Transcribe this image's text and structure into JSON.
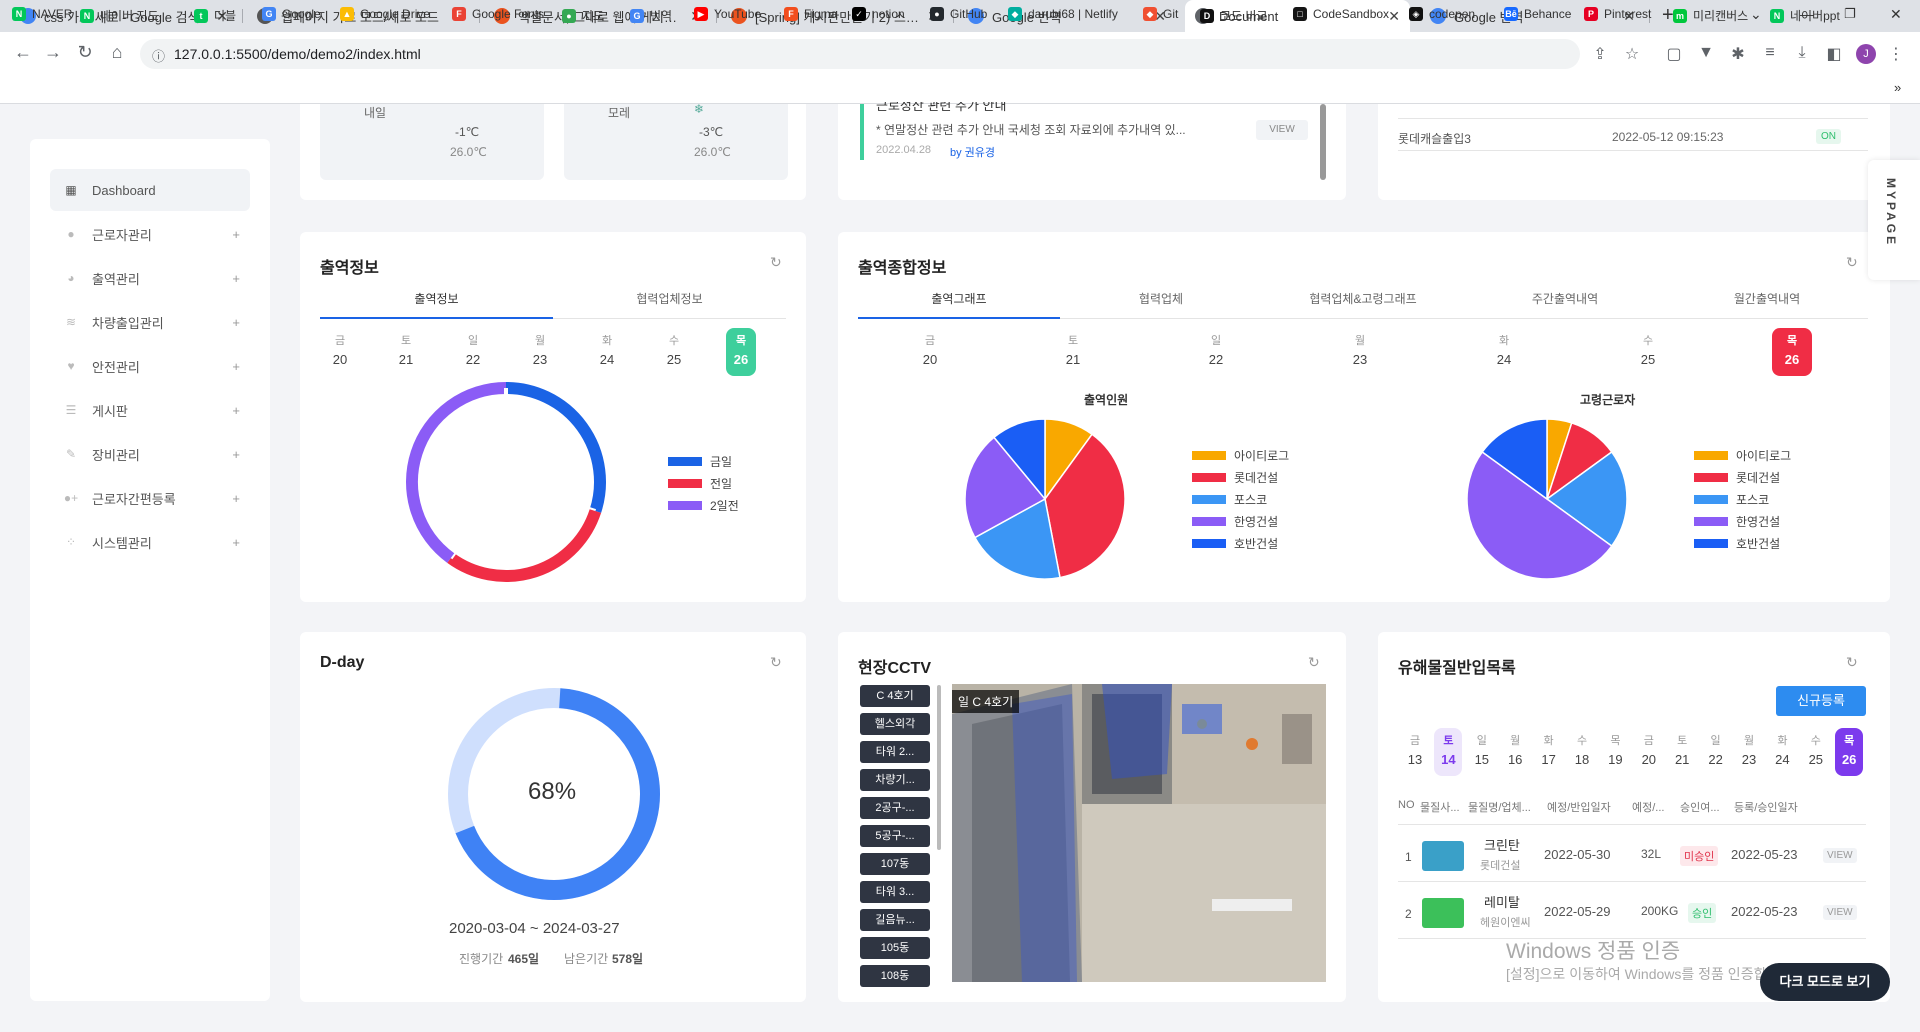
{
  "browser": {
    "tabs": [
      {
        "title": "css 가로 세로 - Google 검색",
        "icon": "google-icon",
        "color": "#4285f4"
      },
      {
        "title": "웹페이지 가로 모드/세로 모드",
        "icon": "github-icon",
        "color": "#555555"
      },
      {
        "title": "엑셀문서, 그대로 웹에 게시하는",
        "icon": "tistory-icon",
        "color": "#eb531f"
      },
      {
        "title": "[Spring] 게시판만들기 2) 스프링",
        "icon": "tistory-icon",
        "color": "#eb531f"
      },
      {
        "title": "Google 번역",
        "icon": "translate-icon",
        "color": "#4285f4"
      },
      {
        "title": "Document",
        "icon": "globe-icon",
        "color": "#5f6368"
      },
      {
        "title": "Google 번역",
        "icon": "translate-icon",
        "color": "#4285f4"
      }
    ],
    "new_tab": "+",
    "url": "127.0.0.1:5500/demo/demo2/index.html",
    "bookmarks": [
      {
        "label": "NAVER",
        "color": "#03c75a",
        "glyph": "N"
      },
      {
        "label": "네이버 지도",
        "color": "#03c75a",
        "glyph": "N"
      },
      {
        "label": "더블",
        "color": "#03c75a",
        "glyph": "t"
      },
      {
        "label": "Google",
        "color": "#4285f4",
        "glyph": "G"
      },
      {
        "label": "Google Drive",
        "color": "#fbbc04",
        "glyph": "▲"
      },
      {
        "label": "Google Fonts",
        "color": "#ea4335",
        "glyph": "F"
      },
      {
        "label": "지도",
        "color": "#34a853",
        "glyph": "●"
      },
      {
        "label": "번역",
        "color": "#4285f4",
        "glyph": "G"
      },
      {
        "label": "YouTube",
        "color": "#ff0000",
        "glyph": "▶"
      },
      {
        "label": "Figma",
        "color": "#f24e1e",
        "glyph": "F"
      },
      {
        "label": "notion",
        "color": "#000000",
        "glyph": "✓"
      },
      {
        "label": "GitHub",
        "color": "#24292e",
        "glyph": "●"
      },
      {
        "label": "darubi68 | Netlify",
        "color": "#00ad9f",
        "glyph": "◆"
      },
      {
        "label": "Git",
        "color": "#f05032",
        "glyph": "◆"
      },
      {
        "label": "코드 비교",
        "color": "#111111",
        "glyph": "D"
      },
      {
        "label": "CodeSandbox",
        "color": "#151515",
        "glyph": "□"
      },
      {
        "label": "codepen",
        "color": "#111111",
        "glyph": "◈"
      },
      {
        "label": "Behance",
        "color": "#1769ff",
        "glyph": "Bē"
      },
      {
        "label": "Pinterest",
        "color": "#e60023",
        "glyph": "P"
      },
      {
        "label": "미리캔버스",
        "color": "#00c73c",
        "glyph": "m"
      },
      {
        "label": "네이버ppt",
        "color": "#03c75a",
        "glyph": "N"
      }
    ],
    "more": "»"
  },
  "sidebar": {
    "items": [
      {
        "label": "Dashboard",
        "icon": "grid-icon",
        "active": true
      },
      {
        "label": "근로자관리",
        "icon": "user-icon"
      },
      {
        "label": "출역관리",
        "icon": "pie-icon"
      },
      {
        "label": "차량출입관리",
        "icon": "layers-icon"
      },
      {
        "label": "안전관리",
        "icon": "heart-icon"
      },
      {
        "label": "게시판",
        "icon": "list-icon"
      },
      {
        "label": "장비관리",
        "icon": "wrench-icon"
      },
      {
        "label": "근로자간편등록",
        "icon": "user-plus-icon"
      },
      {
        "label": "시스템관리",
        "icon": "dots-icon"
      }
    ],
    "plus": "+"
  },
  "weather": {
    "boxes": [
      {
        "day": "내일",
        "temp_low": "-1℃",
        "temp_high": "26.0℃"
      },
      {
        "day": "모레",
        "temp_low": "-3℃",
        "temp_high": "26.0℃"
      }
    ]
  },
  "notice": {
    "title_partial": "근로정산 관련 추가 안내",
    "text": "* 연말정산 관련 추가 안내 국세청 조회 자료외에 추가내역 있...",
    "date": "2022.04.28",
    "author": "by 권유경",
    "view": "VIEW"
  },
  "access": {
    "row": {
      "name": "롯데캐슬출입3",
      "time": "2022-05-12 09:15:23",
      "status": "ON"
    }
  },
  "mypage": "MYPAGE",
  "attendance": {
    "title": "출역정보",
    "tabs": [
      "출역정보",
      "협력업체정보"
    ],
    "days": [
      {
        "w": "금",
        "d": "20"
      },
      {
        "w": "토",
        "d": "21"
      },
      {
        "w": "일",
        "d": "22"
      },
      {
        "w": "월",
        "d": "23"
      },
      {
        "w": "화",
        "d": "24"
      },
      {
        "w": "수",
        "d": "25"
      },
      {
        "w": "목",
        "d": "26",
        "sel": true
      }
    ],
    "sel_color": "#3ecf9c",
    "legend": [
      {
        "label": "금일",
        "color": "#1a63e5"
      },
      {
        "label": "전일",
        "color": "#f02d45"
      },
      {
        "label": "2일전",
        "color": "#8b5cf6"
      }
    ],
    "donut_values": [
      0.3,
      0.3,
      0.4
    ]
  },
  "summary": {
    "title": "출역종합정보",
    "tabs": [
      "출역그래프",
      "협력업체",
      "협력업체&고령그래프",
      "주간출역내역",
      "월간출역내역"
    ],
    "days": [
      {
        "w": "금",
        "d": "20"
      },
      {
        "w": "토",
        "d": "21"
      },
      {
        "w": "일",
        "d": "22"
      },
      {
        "w": "월",
        "d": "23"
      },
      {
        "w": "화",
        "d": "24"
      },
      {
        "w": "수",
        "d": "25"
      },
      {
        "w": "목",
        "d": "26",
        "sel": true
      }
    ],
    "sel_color": "#f02d45",
    "pie1": {
      "title": "출역인원",
      "values": [
        10,
        37,
        20,
        22,
        11
      ]
    },
    "pie2": {
      "title": "고령근로자",
      "values": [
        5,
        10,
        20,
        50,
        15
      ]
    },
    "legend": [
      {
        "label": "아이티로그",
        "color": "#f9a800"
      },
      {
        "label": "롯데건설",
        "color": "#f02d45"
      },
      {
        "label": "포스코",
        "color": "#3b96f5"
      },
      {
        "label": "한영건설",
        "color": "#8b5cf6"
      },
      {
        "label": "호반건설",
        "color": "#1a5ef5"
      }
    ]
  },
  "dday": {
    "title": "D-day",
    "percent_label": "68%",
    "percent": 0.68,
    "range": "2020-03-04 ~ 2024-03-27",
    "elapsed_label": "진행기간",
    "elapsed": "465일",
    "remain_label": "남은기간",
    "remain": "578일"
  },
  "cctv": {
    "title": "현장CCTV",
    "buttons": [
      "C 4호기",
      "헬스외각",
      "타워 2...",
      "차량기...",
      "2공구-...",
      "5공구-...",
      "107동",
      "타워 3...",
      "길음뉴...",
      "105동",
      "108동"
    ],
    "caption": "일 C 4호기"
  },
  "hazard": {
    "title": "유해물질반입목록",
    "new_btn": "신규등록",
    "days": [
      {
        "w": "금",
        "d": "13"
      },
      {
        "w": "토",
        "d": "14",
        "sel2": true
      },
      {
        "w": "일",
        "d": "15"
      },
      {
        "w": "월",
        "d": "16"
      },
      {
        "w": "화",
        "d": "17"
      },
      {
        "w": "수",
        "d": "18"
      },
      {
        "w": "목",
        "d": "19"
      },
      {
        "w": "금",
        "d": "20"
      },
      {
        "w": "토",
        "d": "21"
      },
      {
        "w": "일",
        "d": "22"
      },
      {
        "w": "월",
        "d": "23"
      },
      {
        "w": "화",
        "d": "24"
      },
      {
        "w": "수",
        "d": "25"
      },
      {
        "w": "목",
        "d": "26",
        "sel": true
      }
    ],
    "headers": [
      "NO",
      "물질사...",
      "물질명/업체...",
      "예정/반입일자",
      "예정/...",
      "승인여...",
      "등록/승인일자"
    ],
    "rows": [
      {
        "no": "1",
        "name": "크린탄",
        "company": "롯데건설",
        "date": "2022-05-30",
        "qty": "32L",
        "status": "미승인",
        "reg": "2022-05-23",
        "view": "VIEW",
        "thumb": "#3aa0c8"
      },
      {
        "no": "2",
        "name": "레미탈",
        "company": "헤원이엔씨",
        "date": "2022-05-29",
        "qty": "200KG",
        "status": "승인",
        "reg": "2022-05-23",
        "view": "VIEW",
        "thumb": "#3cc05a"
      }
    ]
  },
  "overlay": {
    "win1": "Windows 정품 인증",
    "win2": "[설정]으로 이동하여 Windows를 정품 인증합니다.",
    "dark": "다크 모드로 보기"
  }
}
